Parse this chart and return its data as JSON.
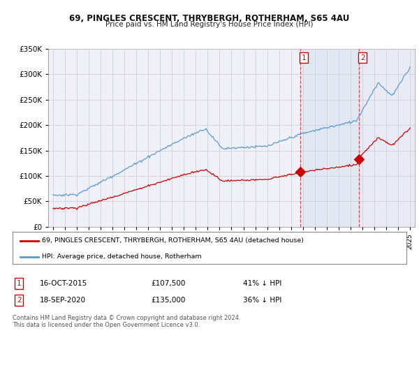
{
  "title_line1": "69, PINGLES CRESCENT, THRYBERGH, ROTHERHAM, S65 4AU",
  "title_line2": "Price paid vs. HM Land Registry's House Price Index (HPI)",
  "legend_label_red": "69, PINGLES CRESCENT, THRYBERGH, ROTHERHAM, S65 4AU (detached house)",
  "legend_label_blue": "HPI: Average price, detached house, Rotherham",
  "transaction1_label": "1",
  "transaction1_date": "16-OCT-2015",
  "transaction1_price": "£107,500",
  "transaction1_hpi": "41% ↓ HPI",
  "transaction2_label": "2",
  "transaction2_date": "18-SEP-2020",
  "transaction2_price": "£135,000",
  "transaction2_hpi": "36% ↓ HPI",
  "footnote": "Contains HM Land Registry data © Crown copyright and database right 2024.\nThis data is licensed under the Open Government Licence v3.0.",
  "red_color": "#cc0000",
  "blue_color": "#5b9bd5",
  "shade_color": "#ddeeff",
  "background_color": "#ffffff",
  "panel_color": "#f0f0f8",
  "grid_color": "#cccccc",
  "ylim_min": 0,
  "ylim_max": 350000,
  "transaction1_year": 2015.79,
  "transaction2_year": 2020.72,
  "transaction1_price_val": 107500,
  "transaction2_price_val": 135000
}
